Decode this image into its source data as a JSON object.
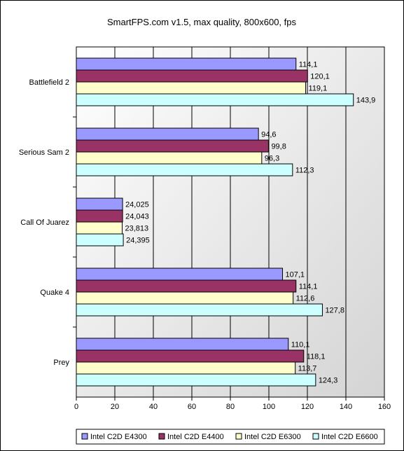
{
  "chart_data": {
    "type": "bar",
    "orientation": "horizontal",
    "title": "SmartFPS.com v1.5, max quality, 800x600, fps",
    "xlabel": "",
    "ylabel": "",
    "xlim": [
      0,
      160
    ],
    "xticks": [
      0,
      20,
      40,
      60,
      80,
      100,
      120,
      140,
      160
    ],
    "grid": true,
    "legend_position": "bottom",
    "categories": [
      "Battlefield 2",
      "Serious Sam 2",
      "Call Of Juarez",
      "Quake 4",
      "Prey"
    ],
    "series": [
      {
        "name": "Intel C2D E4300",
        "color": "#9999ff",
        "values": [
          114.1,
          94.6,
          24.025,
          107.1,
          110.1
        ],
        "labels": [
          "114,1",
          "94,6",
          "24,025",
          "107,1",
          "110,1"
        ]
      },
      {
        "name": "Intel C2D E4400",
        "color": "#993366",
        "values": [
          120.1,
          99.8,
          24.043,
          114.1,
          118.1
        ],
        "labels": [
          "120,1",
          "99,8",
          "24,043",
          "114,1",
          "118,1"
        ]
      },
      {
        "name": "Intel C2D E6300",
        "color": "#ffffcc",
        "values": [
          119.1,
          96.3,
          23.813,
          112.6,
          113.7
        ],
        "labels": [
          "119,1",
          "96,3",
          "23,813",
          "112,6",
          "113,7"
        ]
      },
      {
        "name": "Intel C2D E6600",
        "color": "#ccffff",
        "values": [
          143.9,
          112.3,
          24.395,
          127.8,
          124.3
        ],
        "labels": [
          "143,9",
          "112,3",
          "24,395",
          "127,8",
          "124,3"
        ]
      }
    ]
  }
}
